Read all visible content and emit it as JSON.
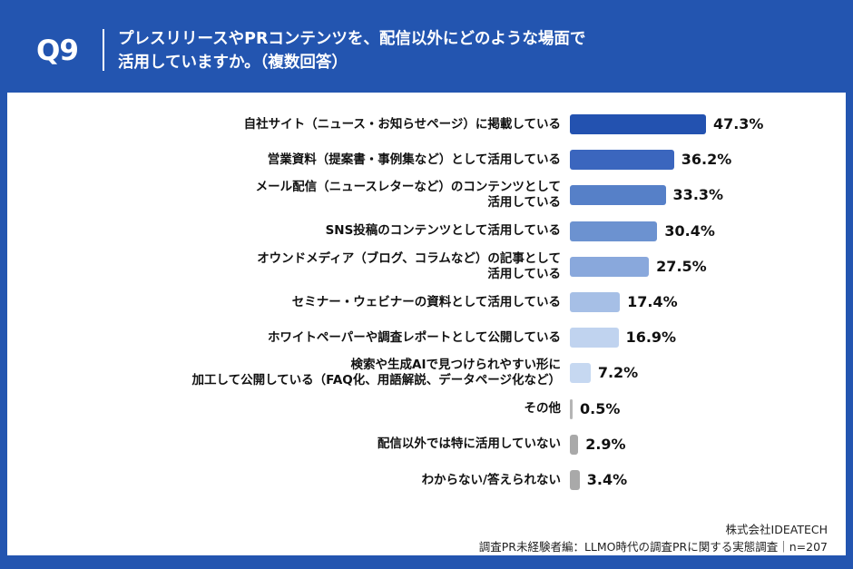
{
  "header": {
    "question_number": "Q9",
    "title": "プレスリリースやPRコンテンツを、配信以外にどのような場面で\n活用していますか。（複数回答）"
  },
  "chart_data": {
    "type": "bar",
    "orientation": "horizontal",
    "unit": "%",
    "categories": [
      "自社サイト（ニュース・お知らせページ）に掲載している",
      "営業資料（提案書・事例集など）として活用している",
      "メール配信（ニュースレターなど）のコンテンツとして\n活用している",
      "SNS投稿のコンテンツとして活用している",
      "オウンドメディア（ブログ、コラムなど）の記事として\n活用している",
      "セミナー・ウェビナーの資料として活用している",
      "ホワイトペーパーや調査レポートとして公開している",
      "検索や生成AIで見つけられやすい形に\n加工して公開している（FAQ化、用語解説、データページ化など）",
      "その他",
      "配信以外では特に活用していない",
      "わからない/答えられない"
    ],
    "values": [
      47.3,
      36.2,
      33.3,
      30.4,
      27.5,
      17.4,
      16.9,
      7.2,
      0.5,
      2.9,
      3.4
    ],
    "value_labels": [
      "47.3%",
      "36.2%",
      "33.3%",
      "30.4%",
      "27.5%",
      "17.4%",
      "16.9%",
      "7.2%",
      "0.5%",
      "2.9%",
      "3.4%"
    ],
    "colors": [
      "#2352b0",
      "#3b66be",
      "#5680c8",
      "#6c92d0",
      "#89a8dc",
      "#a6bfe6",
      "#c0d3ef",
      "#c6d8f1",
      "#b5b5b5",
      "#a9a9a9",
      "#a9a9a9"
    ]
  },
  "footer": {
    "company": "株式会社IDEATECH",
    "survey": "調査PR未経験者編：LLMO時代の調査PRに関する実態調査｜n=207"
  }
}
